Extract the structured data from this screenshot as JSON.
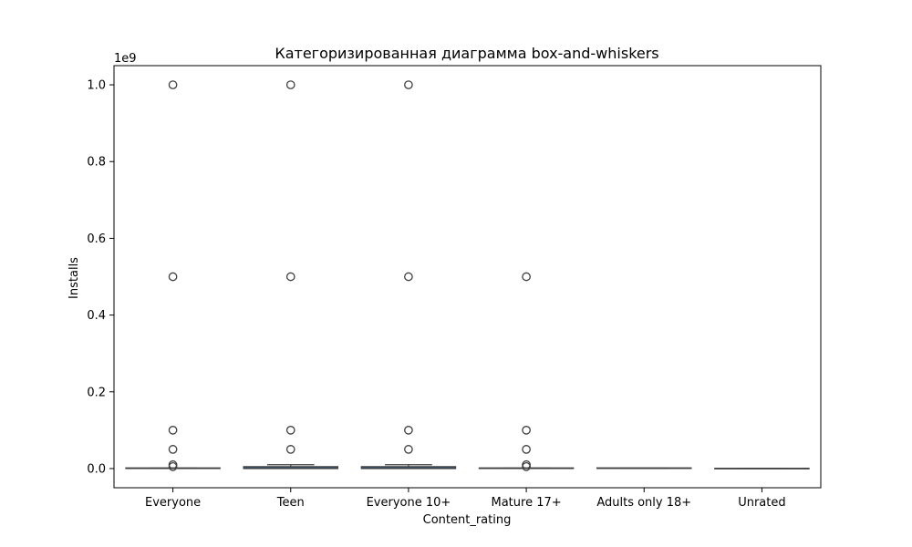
{
  "chart_data": {
    "type": "box",
    "title": "Категоризированная диаграмма box-and-whiskers",
    "xlabel": "Content_rating",
    "ylabel": "Installs",
    "y_offset_label": "1e9",
    "ylim": [
      -50000000,
      1050000000
    ],
    "yticks": [
      0,
      200000000,
      400000000,
      600000000,
      800000000,
      1000000000
    ],
    "ytick_labels": [
      "0.0",
      "0.2",
      "0.4",
      "0.6",
      "0.8",
      "1.0"
    ],
    "grid": false,
    "box_color": "#3b6fa0",
    "line_color": "#3f3f3f",
    "categories": [
      "Everyone",
      "Teen",
      "Everyone 10+",
      "Mature 17+",
      "Adults only 18+",
      "Unrated"
    ],
    "boxes": [
      {
        "whisker_low": 0,
        "q1": 1000,
        "median": 100000,
        "q3": 1000000,
        "whisker_high": 1000000,
        "outliers": [
          1000000000,
          500000000,
          100000000,
          50000000,
          10000000,
          5000000
        ]
      },
      {
        "whisker_low": 0,
        "q1": 10000,
        "median": 1000000,
        "q3": 5000000,
        "whisker_high": 10000000,
        "outliers": [
          1000000000,
          500000000,
          100000000,
          50000000
        ]
      },
      {
        "whisker_low": 0,
        "q1": 10000,
        "median": 1000000,
        "q3": 5000000,
        "whisker_high": 10000000,
        "outliers": [
          1000000000,
          500000000,
          100000000,
          50000000
        ]
      },
      {
        "whisker_low": 0,
        "q1": 1000,
        "median": 100000,
        "q3": 1000000,
        "whisker_high": 1000000,
        "outliers": [
          500000000,
          100000000,
          50000000,
          10000000,
          5000000
        ]
      },
      {
        "whisker_low": 500000,
        "q1": 500000,
        "median": 1000000,
        "q3": 1000000,
        "whisker_high": 1000000,
        "outliers": []
      },
      {
        "whisker_low": 50,
        "q1": 50,
        "median": 50,
        "q3": 50,
        "whisker_high": 50,
        "outliers": []
      }
    ]
  }
}
